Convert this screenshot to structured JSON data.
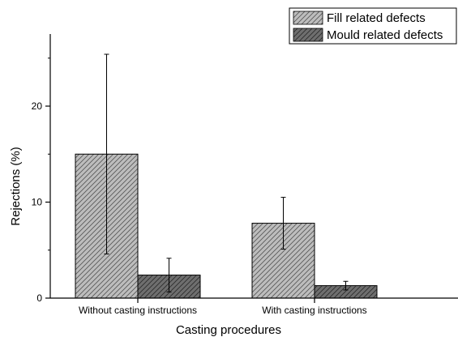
{
  "chart_data": {
    "type": "bar",
    "title": "",
    "xlabel": "Casting procedures",
    "ylabel": "Rejections (%)",
    "categories": [
      "Without casting instructions",
      "With casting instructions"
    ],
    "series": [
      {
        "name": "Fill related defects",
        "values": [
          15.0,
          7.8
        ],
        "error": [
          10.4,
          2.7
        ],
        "fill": "#bdbdbd",
        "hatch": "#555555"
      },
      {
        "name": "Mould related defects",
        "values": [
          2.4,
          1.3
        ],
        "error": [
          1.75,
          0.45
        ],
        "fill": "#6e6e6e",
        "hatch": "#2a2a2a"
      }
    ],
    "ylim": [
      0,
      28
    ],
    "yticks": [
      0,
      10,
      20
    ],
    "grid": false,
    "legend": "top-right"
  }
}
